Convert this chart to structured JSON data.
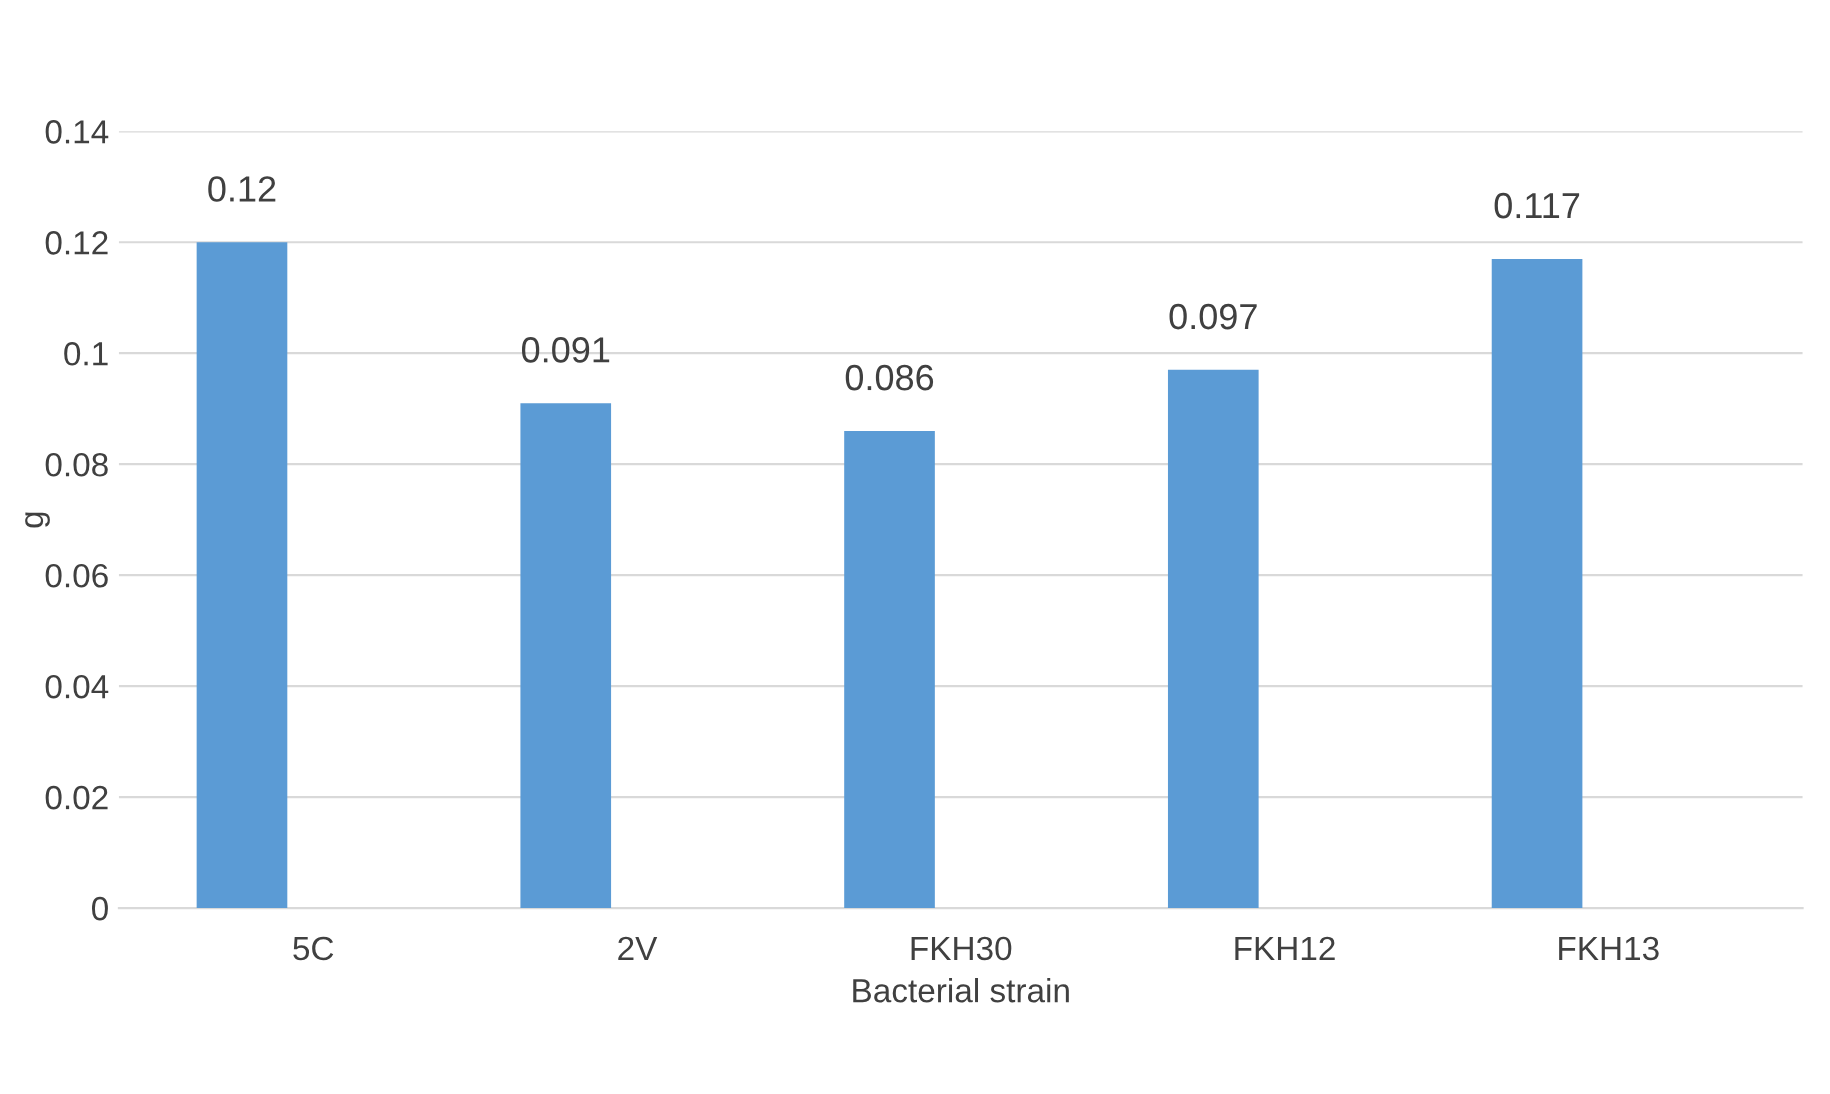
{
  "chart_data": {
    "type": "bar",
    "xlabel": "Bacterial strain",
    "ylabel": "g",
    "categories": [
      "5C",
      "2V",
      "FKH30",
      "FKH12",
      "FKH13"
    ],
    "values": [
      0.12,
      0.091,
      0.086,
      0.097,
      0.117
    ],
    "color": "#5b9bd5",
    "ylim": [
      0,
      0.14
    ],
    "yticks": [
      0,
      0.02,
      0.04,
      0.06,
      0.08,
      0.1,
      0.12,
      0.14
    ],
    "grid": "y",
    "data_labels": true
  }
}
